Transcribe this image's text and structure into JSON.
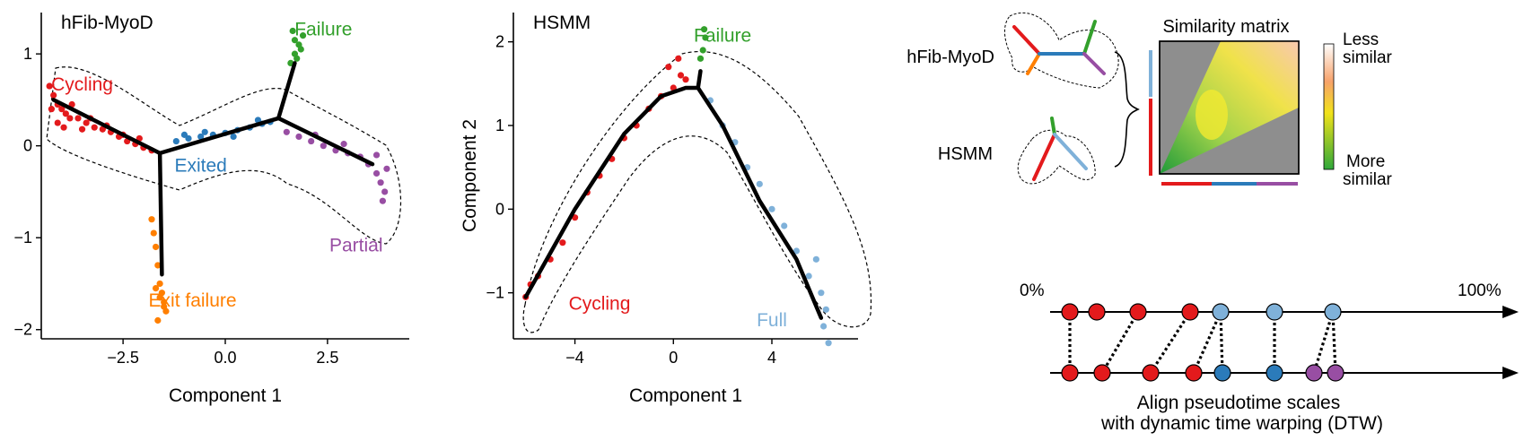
{
  "colors": {
    "red": "#e31a1c",
    "blue": "#2b7bba",
    "purple": "#984ea3",
    "orange": "#ff7f00",
    "green": "#33a02c",
    "lightblue": "#7fb1d9",
    "black": "#000000"
  },
  "chart_data": [
    {
      "type": "scatter",
      "panel_label": "hFib-MyoD",
      "xlabel": "Component 1",
      "ylabel": "",
      "xlim": [
        -4.5,
        4.5
      ],
      "ylim": [
        -2.1,
        1.45
      ],
      "xticks": [
        -2.5,
        0.0,
        2.5
      ],
      "xtick_labels": [
        "−2.5",
        "0.0",
        "2.5"
      ],
      "yticks": [
        -2,
        -1,
        0,
        1
      ],
      "ytick_labels": [
        "−2",
        "−1",
        "0",
        "1"
      ],
      "annotations": [
        {
          "text": "Failure",
          "x": 2.4,
          "y": 1.2,
          "color": "green"
        },
        {
          "text": "Cycling",
          "x": -3.5,
          "y": 0.6,
          "color": "red"
        },
        {
          "text": "Exited",
          "x": -0.6,
          "y": -0.28,
          "color": "blue"
        },
        {
          "text": "Partial",
          "x": 3.2,
          "y": -1.15,
          "color": "purple"
        },
        {
          "text": "Exit failure",
          "x": -0.8,
          "y": -1.75,
          "color": "orange"
        }
      ],
      "trajectory": [
        [
          [
            -4.2,
            0.5
          ],
          [
            -1.6,
            -0.08
          ],
          [
            1.3,
            0.3
          ],
          [
            1.7,
            0.9
          ]
        ],
        [
          [
            1.3,
            0.3
          ],
          [
            3.6,
            -0.2
          ]
        ],
        [
          [
            -1.6,
            -0.08
          ],
          [
            -1.55,
            -1.4
          ]
        ]
      ],
      "series": [
        {
          "name": "Cycling",
          "color": "red",
          "x": [
            -4.3,
            -4.2,
            -4.1,
            -4.0,
            -3.9,
            -3.8,
            -3.6,
            -3.4,
            -3.2,
            -3.0,
            -2.8,
            -2.6,
            -2.4,
            -2.2,
            -2.0,
            -1.8,
            -4.25,
            -4.1,
            -3.95,
            -3.75,
            -3.5,
            -3.3,
            -2.9,
            -2.5,
            -2.1
          ],
          "y": [
            0.65,
            0.55,
            0.45,
            0.4,
            0.35,
            0.3,
            0.3,
            0.25,
            0.2,
            0.18,
            0.15,
            0.1,
            0.05,
            0.02,
            -0.02,
            -0.05,
            0.4,
            0.25,
            0.2,
            0.45,
            0.18,
            0.3,
            0.22,
            0.12,
            0.08
          ]
        },
        {
          "name": "Exited",
          "color": "blue",
          "x": [
            -1.2,
            -0.9,
            -0.6,
            -0.3,
            0.0,
            0.3,
            0.6,
            0.9,
            1.1,
            -1.0,
            -0.5,
            0.2,
            0.8
          ],
          "y": [
            0.05,
            0.08,
            0.1,
            0.12,
            0.14,
            0.17,
            0.2,
            0.24,
            0.26,
            0.12,
            0.15,
            0.1,
            0.28
          ]
        },
        {
          "name": "Partial",
          "color": "purple",
          "x": [
            1.5,
            1.8,
            2.1,
            2.4,
            2.7,
            3.0,
            3.3,
            3.5,
            3.7,
            3.8,
            3.9,
            3.85,
            3.7,
            3.95,
            2.2,
            2.9
          ],
          "y": [
            0.15,
            0.1,
            0.05,
            0.0,
            -0.05,
            -0.08,
            -0.12,
            -0.2,
            -0.3,
            -0.4,
            -0.5,
            -0.6,
            -0.1,
            -0.25,
            0.12,
            0.02
          ]
        },
        {
          "name": "Failure",
          "color": "green",
          "x": [
            1.6,
            1.7,
            1.8,
            1.9,
            1.65,
            1.75,
            1.85,
            1.7
          ],
          "y": [
            0.9,
            1.0,
            1.1,
            1.2,
            1.25,
            0.95,
            1.05,
            1.15
          ]
        },
        {
          "name": "Exit failure",
          "color": "orange",
          "x": [
            -1.8,
            -1.75,
            -1.7,
            -1.65,
            -1.6,
            -1.55,
            -1.5,
            -1.45,
            -1.7,
            -1.6,
            -1.5,
            -1.65
          ],
          "y": [
            -0.8,
            -0.95,
            -1.1,
            -1.3,
            -1.5,
            -1.6,
            -1.7,
            -1.8,
            -1.55,
            -1.65,
            -1.75,
            -1.9
          ]
        }
      ]
    },
    {
      "type": "scatter",
      "panel_label": "HSMM",
      "xlabel": "Component 1",
      "ylabel": "Component 2",
      "xlim": [
        -6.5,
        7.5
      ],
      "ylim": [
        -1.55,
        2.35
      ],
      "xticks": [
        -4,
        0,
        4
      ],
      "xtick_labels": [
        "−4",
        "0",
        "4"
      ],
      "yticks": [
        -1,
        0,
        1,
        2
      ],
      "ytick_labels": [
        "−1",
        "0",
        "1",
        "2"
      ],
      "annotations": [
        {
          "text": "Failure",
          "x": 2.0,
          "y": 2.0,
          "color": "green"
        },
        {
          "text": "Cycling",
          "x": -3.0,
          "y": -1.2,
          "color": "red"
        },
        {
          "text": "Full",
          "x": 4.0,
          "y": -1.4,
          "color": "lightblue"
        }
      ],
      "trajectory": [
        [
          [
            -6.0,
            -1.05
          ],
          [
            -4.0,
            0.0
          ],
          [
            -2.0,
            0.9
          ],
          [
            -0.5,
            1.35
          ],
          [
            0.5,
            1.45
          ],
          [
            1.0,
            1.45
          ],
          [
            2.0,
            1.0
          ],
          [
            3.5,
            0.1
          ],
          [
            5.0,
            -0.6
          ],
          [
            6.0,
            -1.3
          ]
        ],
        [
          [
            1.0,
            1.45
          ],
          [
            1.1,
            1.65
          ]
        ]
      ],
      "series": [
        {
          "name": "Cycling",
          "color": "red",
          "x": [
            -6.0,
            -5.8,
            -5.5,
            -5.0,
            -4.5,
            -4.0,
            -3.5,
            -3.0,
            -2.5,
            -2.0,
            -1.5,
            -1.0,
            -0.5,
            0.0,
            0.3,
            0.5,
            -0.2,
            0.2
          ],
          "y": [
            -1.05,
            -0.9,
            -0.8,
            -0.6,
            -0.4,
            -0.1,
            0.2,
            0.4,
            0.6,
            0.85,
            1.0,
            1.2,
            1.35,
            1.45,
            1.6,
            1.55,
            1.7,
            1.8
          ]
        },
        {
          "name": "Failure",
          "color": "green",
          "x": [
            1.1,
            1.2,
            1.3,
            1.25
          ],
          "y": [
            1.8,
            1.9,
            2.05,
            2.15
          ]
        },
        {
          "name": "Full",
          "color": "lightblue",
          "x": [
            1.5,
            2.0,
            2.5,
            3.0,
            3.5,
            4.0,
            4.5,
            5.0,
            5.5,
            6.0,
            6.2,
            6.1,
            5.8,
            6.3
          ],
          "y": [
            1.3,
            1.0,
            0.8,
            0.5,
            0.3,
            0.0,
            -0.2,
            -0.5,
            -0.8,
            -1.0,
            -1.2,
            -1.4,
            -0.6,
            -1.6
          ]
        }
      ]
    }
  ],
  "schematic": {
    "label_hfib": "hFib-MyoD",
    "label_hsmm": "HSMM",
    "matrix_title": "Similarity matrix",
    "legend_top": [
      "Less",
      "similar"
    ],
    "legend_bottom": [
      "More",
      "similar"
    ],
    "pct_start": "0%",
    "pct_end": "100%",
    "caption_line1": "Align pseudotime scales",
    "caption_line2": "with dynamic time warping (DTW)",
    "top_row_colors": [
      "red",
      "red",
      "red",
      "red",
      "lightblue",
      "lightblue",
      "lightblue"
    ],
    "bottom_row_colors": [
      "red",
      "red",
      "red",
      "red",
      "blue",
      "blue",
      "purple",
      "purple",
      "purple"
    ]
  }
}
